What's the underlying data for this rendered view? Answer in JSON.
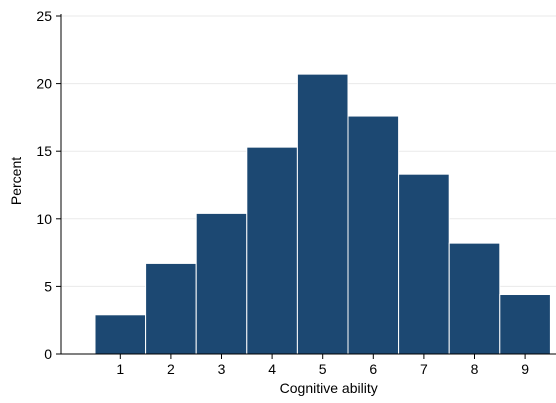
{
  "chart_data": {
    "type": "bar",
    "categories": [
      "1",
      "2",
      "3",
      "4",
      "5",
      "6",
      "7",
      "8",
      "9"
    ],
    "values": [
      2.9,
      6.7,
      10.4,
      15.3,
      20.7,
      17.6,
      13.3,
      8.2,
      4.4
    ],
    "title": "",
    "xlabel": "Cognitive ability",
    "ylabel": "Percent",
    "ylim": [
      0,
      25
    ],
    "yticks": [
      "0",
      "5",
      "10",
      "15",
      "20",
      "25"
    ],
    "xticks": [
      "1",
      "2",
      "3",
      "4",
      "5",
      "6",
      "7",
      "8",
      "9"
    ],
    "grid": true,
    "legend": "none",
    "colors": {
      "bar_fill": "#1c4872",
      "bar_edge": "#ffffff",
      "grid": "#eaeaea",
      "axis": "#000000"
    }
  }
}
